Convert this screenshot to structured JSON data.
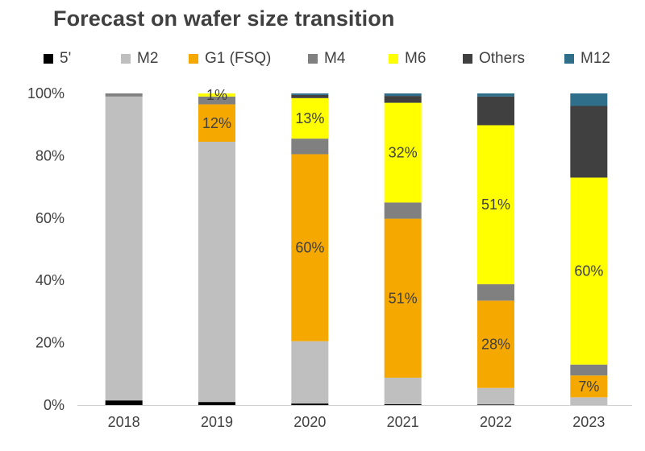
{
  "chart_data": {
    "type": "bar",
    "stacked": true,
    "title": "Forecast on wafer size transition",
    "categories": [
      "2018",
      "2019",
      "2020",
      "2021",
      "2022",
      "2023"
    ],
    "ylim": [
      0,
      100
    ],
    "y_ticks": [
      "0%",
      "20%",
      "40%",
      "60%",
      "80%",
      "100%"
    ],
    "legend_position": "top",
    "grid": false,
    "series": [
      {
        "name": "5'",
        "color": "#000000",
        "values": [
          1.5,
          1.0,
          0.5,
          0.3,
          0.2,
          0.0
        ]
      },
      {
        "name": "M2",
        "color": "#BFBFBF",
        "values": [
          97.5,
          83.5,
          20.0,
          8.5,
          5.3,
          2.5
        ]
      },
      {
        "name": "G1 (FSQ)",
        "color": "#F5A800",
        "values": [
          0.0,
          12.0,
          60.0,
          51.0,
          28.0,
          7.0
        ]
      },
      {
        "name": "M4",
        "color": "#808080",
        "values": [
          1.0,
          2.5,
          5.0,
          5.2,
          5.3,
          3.5
        ]
      },
      {
        "name": "M6",
        "color": "#FFFF00",
        "values": [
          0.0,
          1.0,
          13.0,
          32.0,
          51.0,
          60.0
        ]
      },
      {
        "name": "Others",
        "color": "#404040",
        "values": [
          0.0,
          0.0,
          1.0,
          2.2,
          9.2,
          23.0
        ]
      },
      {
        "name": "M12",
        "color": "#2F6F8A",
        "values": [
          0.0,
          0.0,
          0.5,
          0.8,
          1.0,
          4.0
        ]
      }
    ],
    "data_labels": [
      {
        "category": "2019",
        "series": "M6",
        "text": "1%"
      },
      {
        "category": "2019",
        "series": "G1 (FSQ)",
        "text": "12%"
      },
      {
        "category": "2020",
        "series": "M6",
        "text": "13%"
      },
      {
        "category": "2020",
        "series": "G1 (FSQ)",
        "text": "60%"
      },
      {
        "category": "2021",
        "series": "M6",
        "text": "32%"
      },
      {
        "category": "2021",
        "series": "G1 (FSQ)",
        "text": "51%"
      },
      {
        "category": "2022",
        "series": "M6",
        "text": "51%"
      },
      {
        "category": "2022",
        "series": "G1 (FSQ)",
        "text": "28%"
      },
      {
        "category": "2023",
        "series": "M6",
        "text": "60%"
      },
      {
        "category": "2023",
        "series": "G1 (FSQ)",
        "text": "7%"
      }
    ]
  }
}
